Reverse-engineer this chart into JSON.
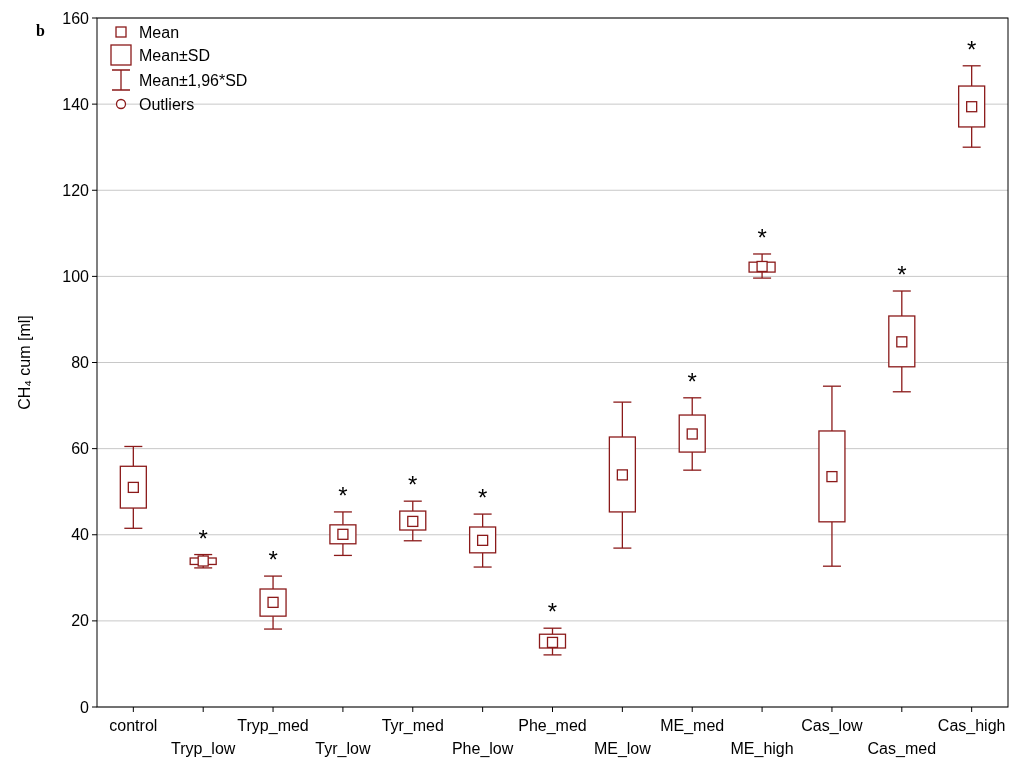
{
  "chart_data": {
    "type": "box",
    "ylabel": "CH₄ cum [ml]",
    "categories": [
      "control",
      "Tryp_low",
      "Tryp_med",
      "Tyr_low",
      "Tyr_med",
      "Phe_low",
      "Phe_med",
      "ME_low",
      "ME_med",
      "ME_high",
      "Cas_low",
      "Cas_med",
      "Cas_high"
    ],
    "color": "#8b1a1a",
    "boxes": [
      {
        "low": 41.5,
        "q1": 46.2,
        "median": 51,
        "q3": 55.9,
        "high": 60.5
      },
      {
        "low": 32.3,
        "q1": 33.1,
        "median": 33.9,
        "q3": 34.6,
        "high": 35.4
      },
      {
        "low": 18.1,
        "q1": 21.1,
        "median": 24.3,
        "q3": 27.4,
        "high": 30.4
      },
      {
        "low": 35.2,
        "q1": 37.9,
        "median": 40.1,
        "q3": 42.3,
        "high": 45.3
      },
      {
        "low": 38.6,
        "q1": 41.1,
        "median": 43.1,
        "q3": 45.5,
        "high": 47.8
      },
      {
        "low": 32.5,
        "q1": 35.8,
        "median": 38.7,
        "q3": 41.8,
        "high": 44.8
      },
      {
        "low": 12.1,
        "q1": 13.7,
        "median": 15,
        "q3": 16.9,
        "high": 18.3
      },
      {
        "low": 36.9,
        "q1": 45.3,
        "median": 53.9,
        "q3": 62.7,
        "high": 70.8
      },
      {
        "low": 55,
        "q1": 59.2,
        "median": 63.4,
        "q3": 67.8,
        "high": 71.8
      },
      {
        "low": 99.6,
        "q1": 101,
        "median": 102.3,
        "q3": 103.3,
        "high": 105.2
      },
      {
        "low": 32.7,
        "q1": 43,
        "median": 53.5,
        "q3": 64.1,
        "high": 74.5
      },
      {
        "low": 73.2,
        "q1": 79,
        "median": 84.8,
        "q3": 90.8,
        "high": 96.6
      },
      {
        "low": 130,
        "q1": 134.7,
        "median": 139.4,
        "q3": 144.2,
        "high": 148.9
      }
    ],
    "ylim": [
      0,
      160
    ],
    "yticks": [
      0,
      20,
      40,
      60,
      80,
      100,
      120,
      140,
      160
    ],
    "grid": "y",
    "marker": "square",
    "annotations": [
      "b",
      "Mean",
      "Mean±SD",
      "Mean±1,96*SD",
      "Outliers",
      {
        "text": "*",
        "x": "Tryp_low",
        "y": 35.4
      },
      {
        "text": "*",
        "x": "Tryp_med",
        "y": 30.4
      },
      {
        "text": "*",
        "x": "Tyr_low",
        "y": 45.3
      },
      {
        "text": "*",
        "x": "Tyr_med",
        "y": 47.8
      },
      {
        "text": "*",
        "x": "Phe_low",
        "y": 44.8
      },
      {
        "text": "*",
        "x": "Phe_med",
        "y": 18.3
      },
      {
        "text": "*",
        "x": "ME_med",
        "y": 71.8
      },
      {
        "text": "*",
        "x": "ME_high",
        "y": 105.2
      },
      {
        "text": "*",
        "x": "Cas_med",
        "y": 96.6
      },
      {
        "text": "*",
        "x": "Cas_high",
        "y": 148.9
      }
    ]
  }
}
